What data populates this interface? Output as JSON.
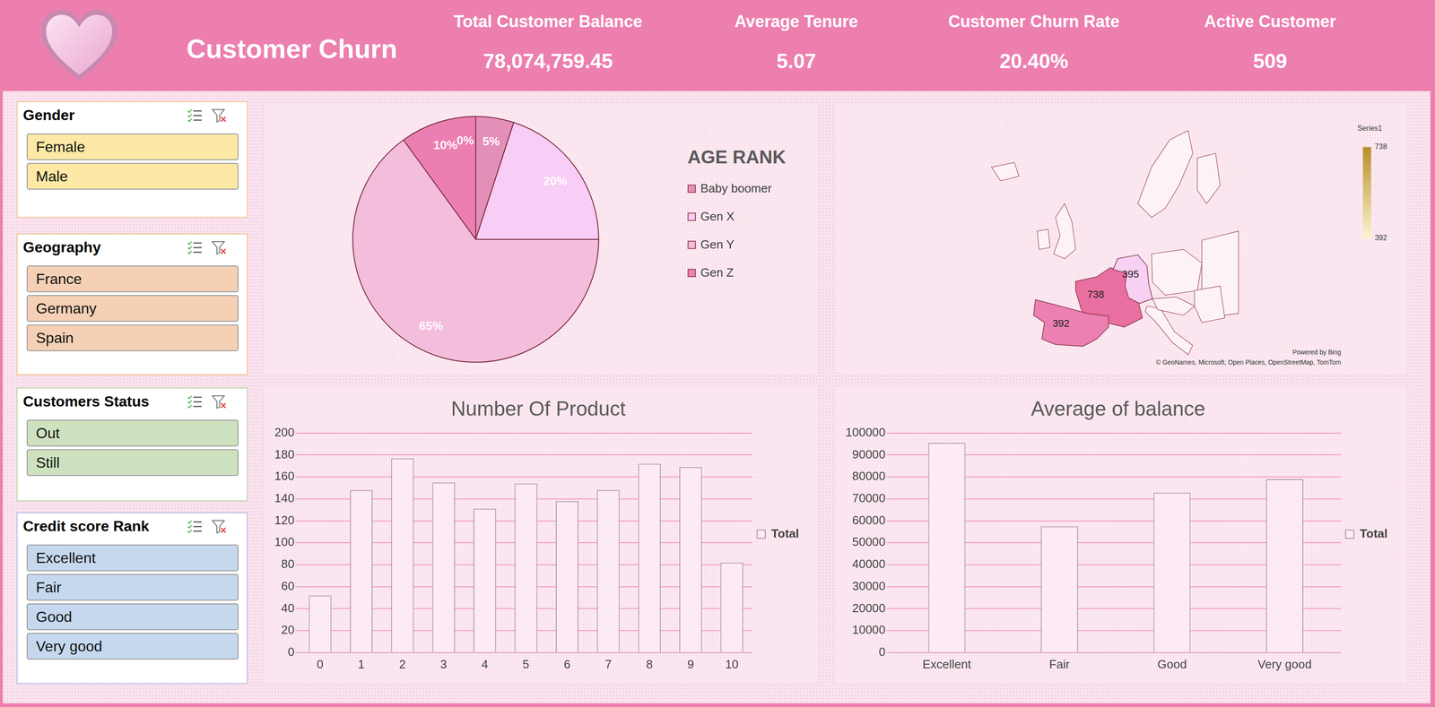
{
  "header": {
    "title": "Customer Churn",
    "kpis": [
      {
        "label": "Total Customer Balance",
        "value": "78,074,759.45"
      },
      {
        "label": "Average Tenure",
        "value": "5.07"
      },
      {
        "label": "Customer Churn Rate",
        "value": "20.40%"
      },
      {
        "label": "Active Customer",
        "value": "509"
      }
    ]
  },
  "slicers": [
    {
      "title": "Gender",
      "items": [
        "Female",
        "Male"
      ]
    },
    {
      "title": "Geography",
      "items": [
        "France",
        "Germany",
        "Spain"
      ]
    },
    {
      "title": "Customers Status",
      "items": [
        "Out",
        "Still"
      ]
    },
    {
      "title": "Credit score Rank",
      "items": [
        "Excellent",
        "Fair",
        "Good",
        "Very good"
      ]
    }
  ],
  "chart_data": [
    {
      "type": "pie",
      "title": "AGE RANK",
      "categories": [
        null,
        "Baby boomer",
        "Gen X",
        "Gen Y",
        "Gen Z"
      ],
      "values": [
        0,
        5,
        20,
        65,
        10
      ],
      "value_labels": [
        "0%",
        "5%",
        "20%",
        "65%",
        "10%"
      ],
      "colors": [
        "#e79bc0",
        "#e48fb8",
        "#f8cdf6",
        "#f3bddc",
        "#ec7fb1"
      ],
      "data_labels": true,
      "legend": "right"
    },
    {
      "type": "map",
      "categories": [
        "France",
        "Germany",
        "Spain"
      ],
      "values": [
        738,
        395,
        392
      ],
      "colors": [
        "#e86fa0",
        "#f7d0f3",
        "#ec80b2"
      ],
      "data_labels": true,
      "colorbar": {
        "title": "Series1",
        "range": [
          392,
          738
        ],
        "ticks": [
          392,
          738
        ]
      },
      "credits": [
        "Powered by Bing",
        "© GeoNames, Microsoft, Open Places, OpenStreetMap, TomTom"
      ]
    },
    {
      "type": "bar",
      "title": "Number Of Product",
      "categories": [
        "0",
        "1",
        "2",
        "3",
        "4",
        "5",
        "6",
        "7",
        "8",
        "9",
        "10"
      ],
      "series": [
        {
          "name": "Total",
          "color": "#fcebf4",
          "values": [
            52,
            148,
            177,
            155,
            131,
            154,
            138,
            148,
            172,
            169,
            82
          ]
        }
      ],
      "ylim": [
        0,
        200
      ],
      "yticks": [
        0,
        20,
        40,
        60,
        80,
        100,
        120,
        140,
        160,
        180,
        200
      ],
      "grid": true,
      "legend": "right"
    },
    {
      "type": "bar",
      "title": "Average of balance",
      "categories": [
        "Excellent",
        "Fair",
        "Good",
        "Very good"
      ],
      "series": [
        {
          "name": "Total",
          "color": "#fcebf4",
          "values": [
            95500,
            57500,
            72800,
            79000
          ]
        }
      ],
      "ylim": [
        0,
        100000
      ],
      "yticks": [
        0,
        10000,
        20000,
        30000,
        40000,
        50000,
        60000,
        70000,
        80000,
        90000,
        100000
      ],
      "grid": true,
      "legend": "right"
    }
  ]
}
